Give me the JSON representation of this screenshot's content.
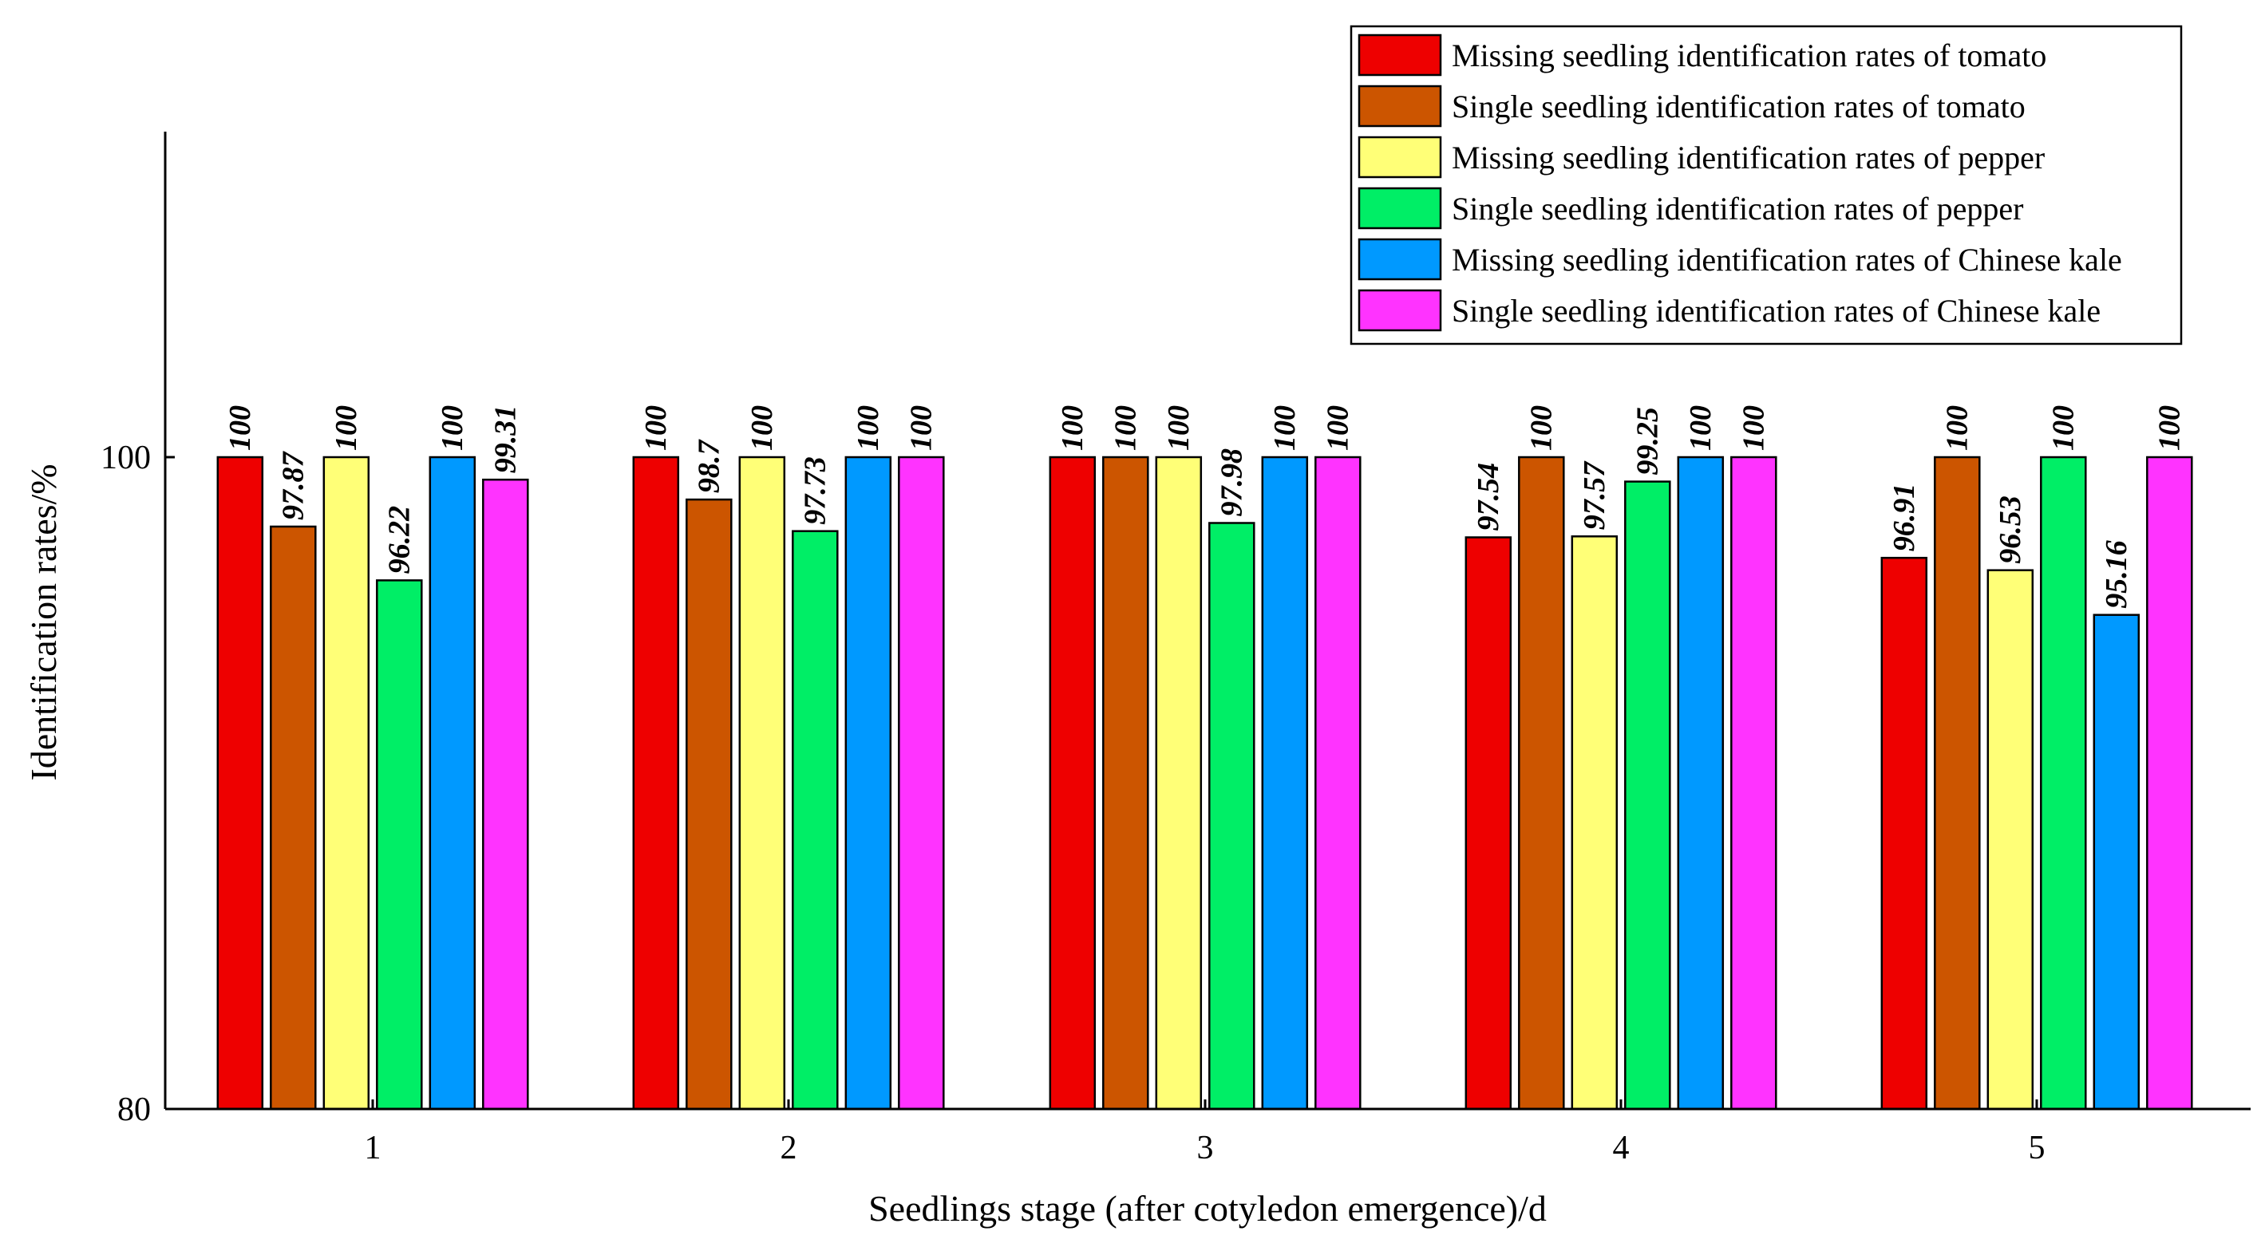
{
  "chart_data": {
    "type": "bar",
    "title": "",
    "xlabel": "Seedlings stage (after cotyledon emergence)/d",
    "ylabel": "Identification rates/%",
    "ylim": [
      80,
      110
    ],
    "yticks": [
      80,
      100
    ],
    "categories": [
      "1",
      "2",
      "3",
      "4",
      "5"
    ],
    "legend_position": "top-right",
    "series": [
      {
        "name": "Missing seedling identification rates of tomato",
        "color": "#ee0000",
        "values": [
          100,
          100,
          100,
          97.54,
          96.91
        ],
        "labels": [
          "100",
          "100",
          "100",
          "97.54",
          "96.91"
        ]
      },
      {
        "name": "Single seedling identification rates of tomato",
        "color": "#cc5500",
        "values": [
          97.87,
          98.7,
          100,
          100,
          100
        ],
        "labels": [
          "97.87",
          "98.7",
          "100",
          "100",
          "100"
        ]
      },
      {
        "name": "Missing seedling identification rates of pepper",
        "color": "#ffff77",
        "values": [
          100,
          100,
          100,
          97.57,
          96.53
        ],
        "labels": [
          "100",
          "100",
          "100",
          "97.57",
          "96.53"
        ]
      },
      {
        "name": "Single seedling identification rates of pepper",
        "color": "#00ee66",
        "values": [
          96.22,
          97.73,
          97.98,
          99.25,
          100
        ],
        "labels": [
          "96.22",
          "97.73",
          "97.98",
          "99.25",
          "100"
        ]
      },
      {
        "name": "Missing seedling identification rates of Chinese kale",
        "color": "#0099ff",
        "values": [
          100,
          100,
          100,
          100,
          95.16
        ],
        "labels": [
          "100",
          "100",
          "100",
          "100",
          "95.16"
        ]
      },
      {
        "name": "Single seedling identification rates of Chinese kale",
        "color": "#ff33ff",
        "values": [
          99.31,
          100,
          100,
          100,
          100
        ],
        "labels": [
          "99.31",
          "100",
          "100",
          "100",
          "100"
        ]
      }
    ]
  }
}
